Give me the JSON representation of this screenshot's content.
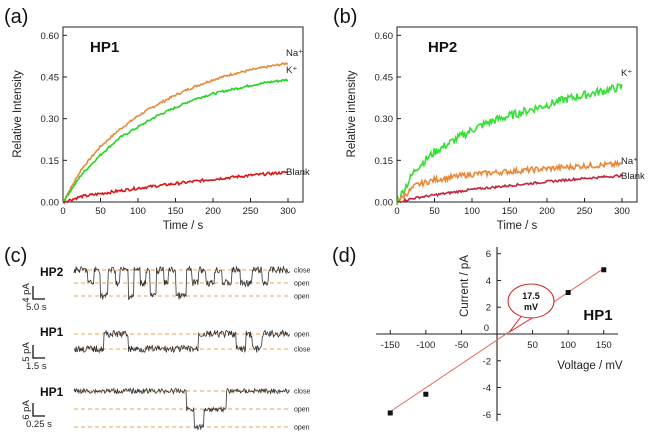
{
  "chart_data": [
    {
      "panel": "(a)",
      "type": "line",
      "title": "HP1",
      "xlabel": "Time / s",
      "ylabel": "Relative Intensity",
      "xlim": [
        0,
        320
      ],
      "ylim": [
        0,
        0.63
      ],
      "xticks": [
        "0",
        "50",
        "100",
        "150",
        "200",
        "250",
        "300"
      ],
      "yticks": [
        "0.00",
        "0.15",
        "0.30",
        "0.45",
        "0.60"
      ],
      "x": [
        0,
        25,
        50,
        75,
        100,
        125,
        150,
        175,
        200,
        225,
        250,
        275,
        300
      ],
      "series": [
        {
          "name": "Na⁺",
          "color": "#e8893a",
          "values": [
            0.0,
            0.12,
            0.2,
            0.26,
            0.31,
            0.35,
            0.385,
            0.415,
            0.44,
            0.46,
            0.475,
            0.488,
            0.5
          ]
        },
        {
          "name": "K⁺",
          "color": "#22d622",
          "values": [
            0.0,
            0.1,
            0.17,
            0.23,
            0.27,
            0.31,
            0.34,
            0.37,
            0.39,
            0.405,
            0.42,
            0.432,
            0.44
          ]
        },
        {
          "name": "Blank",
          "color": "#d81818",
          "values": [
            0.0,
            0.02,
            0.03,
            0.04,
            0.05,
            0.058,
            0.066,
            0.074,
            0.082,
            0.089,
            0.096,
            0.102,
            0.107
          ]
        }
      ]
    },
    {
      "panel": "(b)",
      "type": "line",
      "title": "HP2",
      "xlabel": "Time / s",
      "ylabel": "Relative intensity",
      "xlim": [
        0,
        320
      ],
      "ylim": [
        0,
        0.63
      ],
      "xticks": [
        "0",
        "50",
        "100",
        "150",
        "200",
        "250",
        "300"
      ],
      "yticks": [
        "0.00",
        "0.15",
        "0.30",
        "0.45",
        "0.60"
      ],
      "x": [
        0,
        25,
        50,
        75,
        100,
        125,
        150,
        175,
        200,
        225,
        250,
        275,
        300
      ],
      "series": [
        {
          "name": "K⁺",
          "color": "#33e033",
          "values": [
            0.0,
            0.12,
            0.18,
            0.22,
            0.26,
            0.29,
            0.31,
            0.33,
            0.35,
            0.37,
            0.385,
            0.4,
            0.415
          ]
        },
        {
          "name": "Na⁺",
          "color": "#e8893a",
          "values": [
            0.0,
            0.06,
            0.08,
            0.09,
            0.1,
            0.105,
            0.11,
            0.115,
            0.12,
            0.125,
            0.13,
            0.133,
            0.136
          ]
        },
        {
          "name": "Blank",
          "color": "#c02840",
          "values": [
            0.0,
            0.015,
            0.025,
            0.035,
            0.045,
            0.052,
            0.059,
            0.066,
            0.073,
            0.079,
            0.085,
            0.09,
            0.095
          ]
        }
      ]
    },
    {
      "panel": "(d)",
      "type": "scatter",
      "title": "HP1",
      "xlabel": "Voltage / mV",
      "ylabel": "Current / pA",
      "xlim": [
        -170,
        170
      ],
      "ylim": [
        -6.5,
        6.5
      ],
      "xticks": [
        "-150",
        "-100",
        "-50",
        "0",
        "50",
        "100",
        "150"
      ],
      "yticks": [
        "-6",
        "-4",
        "-2",
        "0",
        "2",
        "4",
        "6"
      ],
      "points": {
        "x": [
          -150,
          -100,
          100,
          150
        ],
        "y": [
          -5.9,
          -4.5,
          3.1,
          4.8
        ]
      },
      "fit": {
        "x": [
          -150,
          150
        ],
        "y": [
          -5.8,
          4.9
        ]
      },
      "annotation": {
        "line1": "17.5",
        "line2": "mV",
        "x": 17.5
      }
    }
  ],
  "panel_c": {
    "label": "(c)",
    "traces": [
      {
        "title": "HP2",
        "scale_current": "4 pA",
        "scale_time": "5.0 s",
        "levels": [
          "close",
          "open",
          "open"
        ]
      },
      {
        "title": "HP1",
        "scale_current": "5 pA",
        "scale_time": "1.5 s",
        "levels": [
          "open",
          "close"
        ]
      },
      {
        "title": "HP1",
        "scale_current": "6 pA",
        "scale_time": "0.25 s",
        "levels": [
          "close",
          "open",
          "open"
        ]
      }
    ]
  },
  "colors": {
    "axis": "#222222",
    "dashed_level": "#f0a050",
    "trace": "#333333",
    "fit": "#e36a6a",
    "callout_border": "#d02020"
  }
}
